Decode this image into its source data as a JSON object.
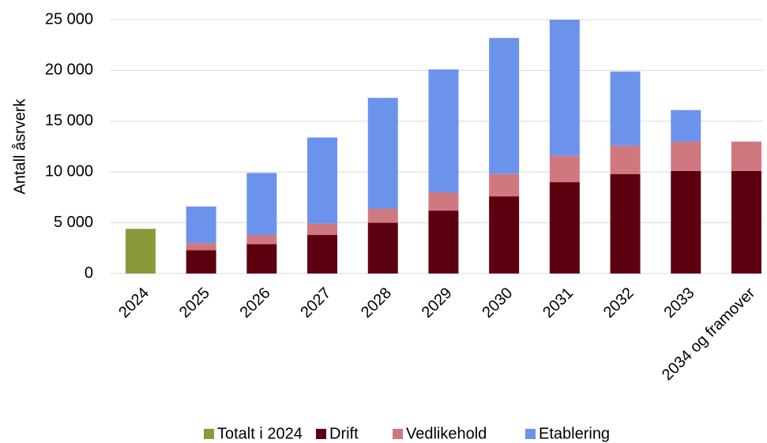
{
  "chart_data": {
    "type": "stacked_bar",
    "y_label": "Antall åsrverk",
    "categories": [
      "2024",
      "2025",
      "2026",
      "2027",
      "2028",
      "2029",
      "2030",
      "2031",
      "2032",
      "2033",
      "2034 og framover"
    ],
    "series": [
      {
        "name": "Totalt i 2024",
        "color": "#8a9a3b",
        "values": [
          4400,
          null,
          null,
          null,
          null,
          null,
          null,
          null,
          null,
          null,
          null
        ]
      },
      {
        "name": "Drift",
        "color": "#5c0010",
        "values": [
          null,
          2300,
          2900,
          3800,
          5000,
          6200,
          7600,
          9000,
          9800,
          10100,
          10100
        ]
      },
      {
        "name": "Vedlikehold",
        "color": "#d07880",
        "values": [
          null,
          700,
          900,
          1100,
          1400,
          1800,
          2200,
          2600,
          2800,
          2900,
          2900
        ]
      },
      {
        "name": "Etablering",
        "color": "#6b93ec",
        "values": [
          null,
          3600,
          6100,
          8500,
          10900,
          12100,
          13400,
          13400,
          7300,
          3100,
          null
        ]
      }
    ],
    "ylim": [
      0,
      25000
    ],
    "yticks": [
      {
        "value": 0,
        "label": "0"
      },
      {
        "value": 5000,
        "label": "5 000"
      },
      {
        "value": 10000,
        "label": "10 000"
      },
      {
        "value": 15000,
        "label": "15 000"
      },
      {
        "value": 20000,
        "label": "20 000"
      },
      {
        "value": 25000,
        "label": "25 000"
      }
    ],
    "grid": true,
    "legend": "bottom"
  }
}
